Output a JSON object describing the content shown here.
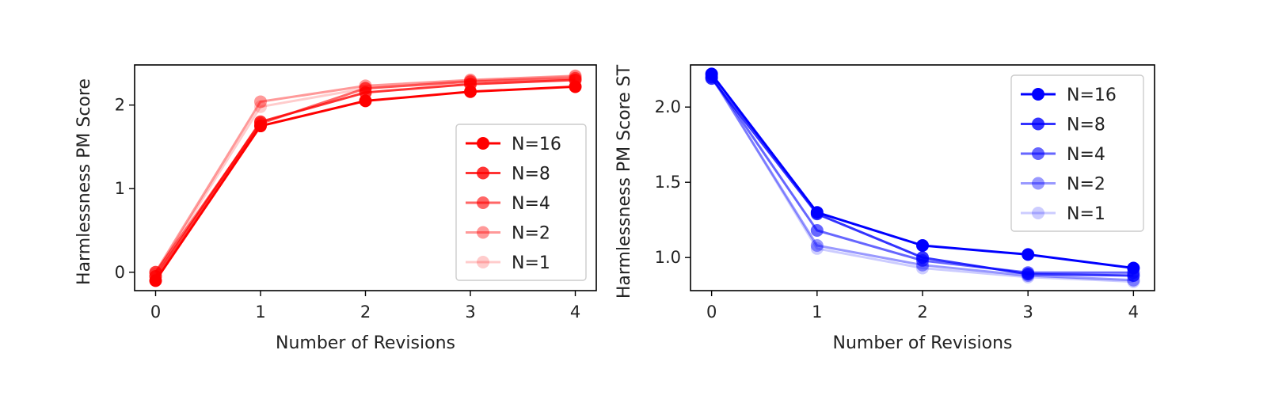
{
  "chart_data": [
    {
      "type": "line",
      "x": [
        0,
        1,
        2,
        3,
        4
      ],
      "xlabel": "Number of Revisions",
      "ylabel": "Harmlessness PM Score",
      "xlim": [
        -0.2,
        4.2
      ],
      "ylim": [
        -0.22,
        2.48
      ],
      "xticks": [
        "0",
        "1",
        "2",
        "3",
        "4"
      ],
      "yticks": [
        0,
        1,
        2
      ],
      "yticklabels": [
        "0",
        "1",
        "2"
      ],
      "legend_position": "center-right",
      "series": [
        {
          "name": "N=16",
          "color": "#ff0000",
          "alpha": 1.0,
          "values": [
            -0.1,
            1.75,
            2.05,
            2.16,
            2.22
          ]
        },
        {
          "name": "N=8",
          "color": "#ff0000",
          "alpha": 0.8,
          "values": [
            -0.05,
            1.8,
            2.15,
            2.25,
            2.3
          ]
        },
        {
          "name": "N=4",
          "color": "#ff0000",
          "alpha": 0.6,
          "values": [
            0.0,
            1.78,
            2.2,
            2.28,
            2.32
          ]
        },
        {
          "name": "N=2",
          "color": "#ff0000",
          "alpha": 0.4,
          "values": [
            0.0,
            2.04,
            2.23,
            2.3,
            2.35
          ]
        },
        {
          "name": "N=1",
          "color": "#ff0000",
          "alpha": 0.2,
          "values": [
            -0.02,
            1.98,
            2.2,
            2.29,
            2.34
          ]
        }
      ]
    },
    {
      "type": "line",
      "x": [
        0,
        1,
        2,
        3,
        4
      ],
      "xlabel": "Number of Revisions",
      "ylabel": "Harmlessness PM Score ST",
      "xlim": [
        -0.2,
        4.2
      ],
      "ylim": [
        0.78,
        2.28
      ],
      "xticks": [
        "0",
        "1",
        "2",
        "3",
        "4"
      ],
      "yticks": [
        1.0,
        1.5,
        2.0
      ],
      "yticklabels": [
        "1.0",
        "1.5",
        "2.0"
      ],
      "legend_position": "upper-right",
      "series": [
        {
          "name": "N=16",
          "color": "#0000ff",
          "alpha": 1.0,
          "values": [
            2.22,
            1.3,
            1.08,
            1.02,
            0.93
          ]
        },
        {
          "name": "N=8",
          "color": "#0000ff",
          "alpha": 0.8,
          "values": [
            2.19,
            1.29,
            1.0,
            0.89,
            0.88
          ]
        },
        {
          "name": "N=4",
          "color": "#0000ff",
          "alpha": 0.6,
          "values": [
            2.2,
            1.18,
            0.98,
            0.9,
            0.9
          ]
        },
        {
          "name": "N=2",
          "color": "#0000ff",
          "alpha": 0.4,
          "values": [
            2.2,
            1.08,
            0.95,
            0.88,
            0.85
          ]
        },
        {
          "name": "N=1",
          "color": "#0000ff",
          "alpha": 0.2,
          "values": [
            2.21,
            1.06,
            0.93,
            0.87,
            0.84
          ]
        }
      ]
    }
  ]
}
